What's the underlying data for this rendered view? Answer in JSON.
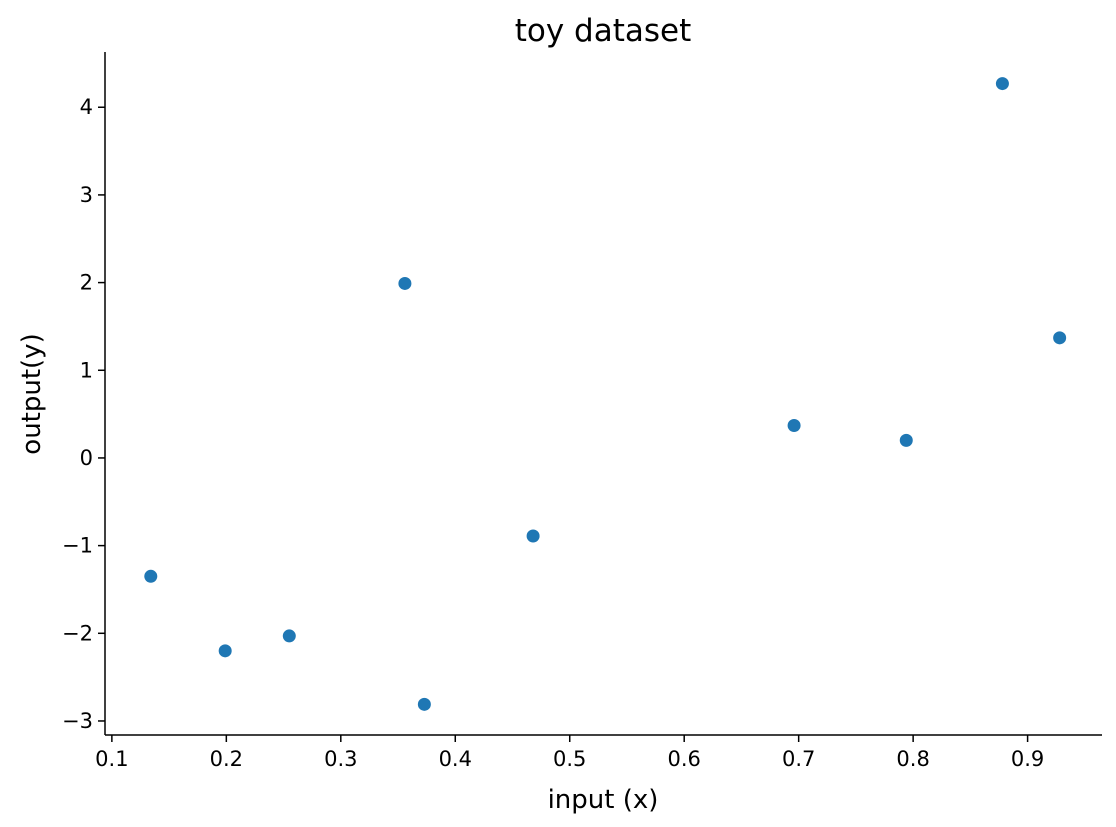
{
  "chart_data": {
    "type": "scatter",
    "title": "toy dataset",
    "xlabel": "input (x)",
    "ylabel": "output(y)",
    "xlim": [
      0.094,
      0.965
    ],
    "ylim": [
      -3.16,
      4.63
    ],
    "xticks": [
      0.1,
      0.2,
      0.3,
      0.4,
      0.5,
      0.6,
      0.7,
      0.8,
      0.9
    ],
    "xtick_labels": [
      "0.1",
      "0.2",
      "0.3",
      "0.4",
      "0.5",
      "0.6",
      "0.7",
      "0.8",
      "0.9"
    ],
    "yticks": [
      -3,
      -2,
      -1,
      0,
      1,
      2,
      3,
      4
    ],
    "ytick_labels": [
      "−3",
      "−2",
      "−1",
      "0",
      "1",
      "2",
      "3",
      "4"
    ],
    "grid": false,
    "point_color": "#1f77b4",
    "points": [
      {
        "x": 0.134,
        "y": -1.35
      },
      {
        "x": 0.199,
        "y": -2.2
      },
      {
        "x": 0.255,
        "y": -2.03
      },
      {
        "x": 0.356,
        "y": 1.99
      },
      {
        "x": 0.373,
        "y": -2.81
      },
      {
        "x": 0.468,
        "y": -0.89
      },
      {
        "x": 0.696,
        "y": 0.37
      },
      {
        "x": 0.794,
        "y": 0.2
      },
      {
        "x": 0.878,
        "y": 4.27
      },
      {
        "x": 0.928,
        "y": 1.37
      }
    ]
  }
}
